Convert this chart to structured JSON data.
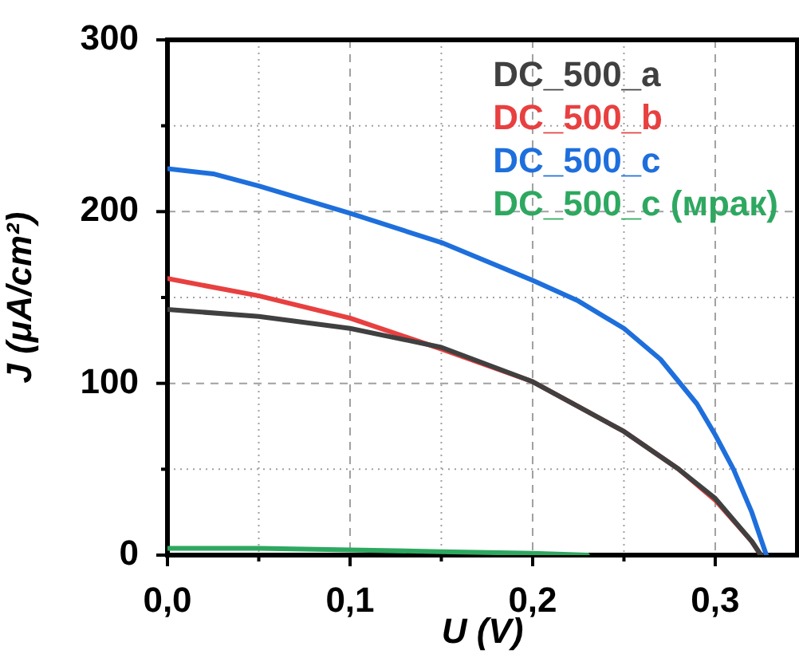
{
  "chart_data": {
    "type": "line",
    "xlabel": "U (V)",
    "ylabel": "J (μA/cm²)",
    "xlim": [
      0,
      0.345
    ],
    "ylim": [
      0,
      300
    ],
    "xticks": [
      {
        "value": 0,
        "label": "0,0"
      },
      {
        "value": 0.05,
        "label": null
      },
      {
        "value": 0.1,
        "label": "0,1"
      },
      {
        "value": 0.15,
        "label": null
      },
      {
        "value": 0.2,
        "label": "0,2"
      },
      {
        "value": 0.25,
        "label": null
      },
      {
        "value": 0.3,
        "label": "0,3"
      }
    ],
    "yticks": [
      0,
      {
        "value": 50,
        "label": null
      },
      100,
      {
        "value": 150,
        "label": null
      },
      200,
      {
        "value": 250,
        "label": null
      },
      300
    ],
    "grid": true,
    "legend": "top right",
    "marker": "none",
    "line_style": "solid",
    "series": [
      {
        "name": "DC_500_a",
        "color": "#404040",
        "x": [
          0,
          0.05,
          0.1,
          0.15,
          0.2,
          0.25,
          0.28,
          0.3,
          0.32,
          0.325
        ],
        "values": [
          143,
          139,
          132,
          121,
          101,
          72,
          50,
          33,
          8,
          0
        ]
      },
      {
        "name": "DC_500_b",
        "color": "#e84040",
        "x": [
          0,
          0.05,
          0.1,
          0.15,
          0.2,
          0.25,
          0.28,
          0.3,
          0.32,
          0.325
        ],
        "values": [
          161,
          151,
          138,
          120,
          101,
          72,
          50,
          32,
          8,
          0
        ]
      },
      {
        "name": "DC_500_c",
        "color": "#1e6fdc",
        "x": [
          0,
          0.025,
          0.05,
          0.1,
          0.15,
          0.2,
          0.225,
          0.25,
          0.27,
          0.29,
          0.3,
          0.31,
          0.32,
          0.328
        ],
        "values": [
          225,
          222,
          215,
          199,
          182,
          160,
          148,
          132,
          114,
          88,
          70,
          50,
          25,
          0
        ]
      },
      {
        "name": "DC_500_c (мрак)",
        "color": "#2ea860",
        "x": [
          0,
          0.05,
          0.1,
          0.15,
          0.2,
          0.23
        ],
        "values": [
          4,
          4,
          3,
          2,
          1,
          0
        ]
      }
    ]
  }
}
